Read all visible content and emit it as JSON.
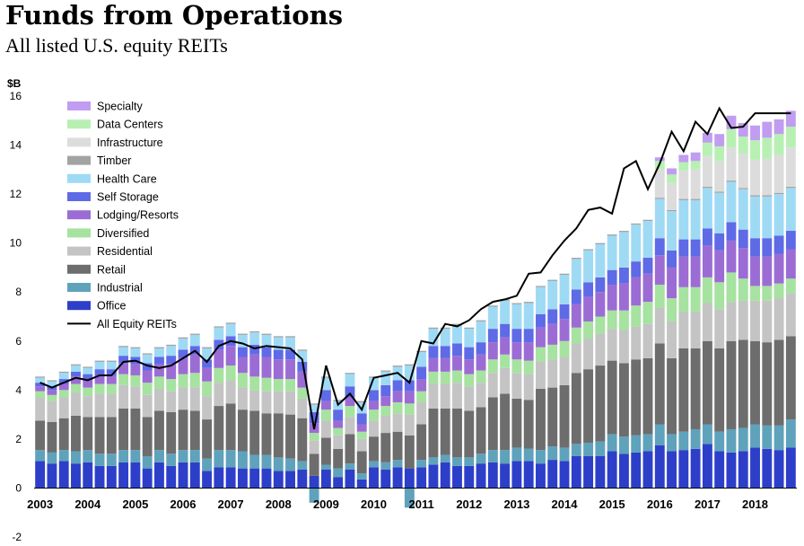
{
  "title": "Funds from Operations",
  "subtitle": "All listed U.S. equity REITs",
  "chart_data": {
    "type": "bar",
    "stacked": true,
    "title": "Funds from Operations",
    "subtitle": "All listed U.S. equity REITs",
    "ylabel": "$B",
    "xlabel": "",
    "ylim": [
      -2,
      16
    ],
    "yticks": [
      -2,
      0,
      2,
      4,
      6,
      8,
      10,
      12,
      14,
      16
    ],
    "x_tick_labels": [
      "2003",
      "2004",
      "2005",
      "2006",
      "2007",
      "2008",
      "2009",
      "2010",
      "2011",
      "2012",
      "2013",
      "2014",
      "2015",
      "2016",
      "2017",
      "2018"
    ],
    "x_start": "2003Q1",
    "periods_per_year": 4,
    "grid": false,
    "legend_position": "top-left",
    "series": [
      {
        "name": "Office",
        "color": "#2d3fc9",
        "values": [
          1.1,
          1.0,
          1.1,
          1.0,
          1.05,
          0.9,
          0.9,
          1.05,
          1.05,
          0.8,
          1.05,
          0.9,
          1.05,
          1.05,
          0.7,
          0.85,
          0.85,
          0.8,
          0.8,
          0.8,
          0.7,
          0.7,
          0.75,
          0.5,
          0.75,
          0.45,
          0.75,
          0.35,
          0.85,
          0.75,
          0.85,
          0.8,
          0.85,
          0.95,
          1.05,
          0.9,
          0.9,
          1.0,
          1.05,
          1.0,
          1.1,
          1.1,
          1.0,
          1.15,
          1.1,
          1.3,
          1.3,
          1.3,
          1.5,
          1.4,
          1.45,
          1.5,
          1.75,
          1.5,
          1.55,
          1.6,
          1.8,
          1.5,
          1.45,
          1.5,
          1.65,
          1.6,
          1.55,
          1.65
        ]
      },
      {
        "name": "Industrial",
        "color": "#5fa2bc",
        "values": [
          0.45,
          0.45,
          0.45,
          0.5,
          0.5,
          0.5,
          0.5,
          0.5,
          0.5,
          0.5,
          0.5,
          0.5,
          0.5,
          0.5,
          0.5,
          0.7,
          0.7,
          0.7,
          0.55,
          0.55,
          0.55,
          0.5,
          0.35,
          -0.6,
          0.2,
          0.35,
          0.25,
          0.25,
          0.25,
          0.3,
          0.3,
          -0.8,
          0.3,
          0.3,
          0.3,
          0.35,
          0.35,
          0.4,
          0.5,
          0.55,
          0.55,
          0.5,
          0.55,
          0.55,
          0.55,
          0.5,
          0.55,
          0.6,
          0.7,
          0.7,
          0.7,
          0.7,
          0.85,
          0.7,
          0.75,
          0.8,
          0.8,
          0.8,
          0.95,
          0.95,
          0.95,
          0.95,
          1.0,
          1.15
        ]
      },
      {
        "name": "Retail",
        "color": "#6d6d6d",
        "values": [
          1.2,
          1.25,
          1.3,
          1.45,
          1.35,
          1.5,
          1.5,
          1.7,
          1.7,
          1.6,
          1.6,
          1.7,
          1.65,
          1.6,
          1.6,
          1.8,
          1.9,
          1.7,
          1.8,
          1.7,
          1.8,
          1.8,
          1.75,
          0.9,
          1.1,
          0.8,
          1.2,
          0.9,
          1.0,
          1.2,
          1.15,
          1.35,
          1.45,
          2.0,
          1.9,
          2.0,
          1.9,
          1.9,
          2.15,
          2.3,
          2.0,
          2.0,
          2.5,
          2.4,
          2.55,
          2.9,
          3.0,
          3.1,
          3.0,
          3.0,
          3.1,
          3.1,
          3.3,
          3.1,
          3.4,
          3.3,
          3.4,
          3.4,
          3.6,
          3.6,
          3.4,
          3.4,
          3.5,
          3.4
        ]
      },
      {
        "name": "Residential",
        "color": "#c4c4c4",
        "values": [
          0.95,
          0.85,
          0.85,
          0.95,
          0.85,
          0.95,
          0.95,
          0.95,
          0.9,
          0.9,
          0.9,
          0.85,
          0.9,
          0.95,
          0.95,
          0.95,
          0.95,
          0.9,
          0.85,
          0.9,
          0.9,
          0.95,
          0.8,
          0.55,
          0.7,
          0.55,
          0.7,
          0.5,
          0.65,
          0.7,
          0.75,
          0.85,
          0.9,
          1.0,
          1.0,
          1.05,
          1.0,
          1.0,
          1.0,
          1.05,
          1.05,
          1.05,
          1.1,
          1.15,
          1.15,
          1.2,
          1.25,
          1.3,
          1.3,
          1.35,
          1.35,
          1.4,
          1.45,
          1.5,
          1.5,
          1.5,
          1.55,
          1.6,
          1.6,
          1.6,
          1.65,
          1.7,
          1.7,
          1.75
        ]
      },
      {
        "name": "Diversified",
        "color": "#a6e2a0",
        "values": [
          0.25,
          0.25,
          0.3,
          0.35,
          0.35,
          0.4,
          0.4,
          0.45,
          0.45,
          0.5,
          0.5,
          0.5,
          0.55,
          0.6,
          0.6,
          0.6,
          0.6,
          0.6,
          0.55,
          0.55,
          0.5,
          0.5,
          0.45,
          0.3,
          0.45,
          0.3,
          0.45,
          0.3,
          0.45,
          0.4,
          0.45,
          0.45,
          0.45,
          0.5,
          0.5,
          0.5,
          0.5,
          0.5,
          0.55,
          0.55,
          0.55,
          0.55,
          0.6,
          0.6,
          0.65,
          0.65,
          0.7,
          0.7,
          0.75,
          0.8,
          0.85,
          0.9,
          0.95,
          0.95,
          1.0,
          1.0,
          1.05,
          1.1,
          1.2,
          0.9,
          0.6,
          0.6,
          0.6,
          0.6
        ]
      },
      {
        "name": "Lodging/Resorts",
        "color": "#9c6cd5",
        "values": [
          0.2,
          0.2,
          0.25,
          0.3,
          0.3,
          0.35,
          0.35,
          0.45,
          0.45,
          0.5,
          0.5,
          0.6,
          0.65,
          0.75,
          0.55,
          0.75,
          0.8,
          0.65,
          0.9,
          0.85,
          0.8,
          0.8,
          0.65,
          0.4,
          0.35,
          0.3,
          0.35,
          0.3,
          0.35,
          0.4,
          0.45,
          0.5,
          0.5,
          0.55,
          0.55,
          0.6,
          0.6,
          0.65,
          0.7,
          0.7,
          0.7,
          0.75,
          0.8,
          0.85,
          0.9,
          0.95,
          1.0,
          1.0,
          1.05,
          1.1,
          1.15,
          1.15,
          1.2,
          1.25,
          1.25,
          1.25,
          1.3,
          1.3,
          1.3,
          1.25,
          1.2,
          1.2,
          1.2,
          1.2
        ]
      },
      {
        "name": "Self Storage",
        "color": "#5f6ae6",
        "values": [
          0.15,
          0.15,
          0.2,
          0.2,
          0.25,
          0.25,
          0.25,
          0.3,
          0.3,
          0.3,
          0.3,
          0.35,
          0.35,
          0.35,
          0.35,
          0.4,
          0.4,
          0.4,
          0.4,
          0.4,
          0.4,
          0.4,
          0.4,
          0.45,
          0.45,
          0.45,
          0.45,
          0.45,
          0.45,
          0.45,
          0.45,
          0.45,
          0.5,
          0.5,
          0.5,
          0.5,
          0.5,
          0.5,
          0.55,
          0.55,
          0.55,
          0.55,
          0.55,
          0.6,
          0.6,
          0.6,
          0.6,
          0.6,
          0.6,
          0.65,
          0.65,
          0.65,
          0.7,
          0.7,
          0.7,
          0.7,
          0.7,
          0.7,
          0.75,
          0.75,
          0.75,
          0.75,
          0.75,
          0.75
        ]
      },
      {
        "name": "Health Care",
        "color": "#9fdaf5",
        "values": [
          0.2,
          0.2,
          0.25,
          0.25,
          0.25,
          0.3,
          0.3,
          0.35,
          0.35,
          0.35,
          0.35,
          0.4,
          0.45,
          0.45,
          0.45,
          0.5,
          0.5,
          0.5,
          0.5,
          0.5,
          0.5,
          0.5,
          0.45,
          0.3,
          0.5,
          0.35,
          0.5,
          0.45,
          0.5,
          0.55,
          0.55,
          0.6,
          0.6,
          0.7,
          0.7,
          0.75,
          0.75,
          0.85,
          0.9,
          0.95,
          1.0,
          1.05,
          1.1,
          1.15,
          1.2,
          1.25,
          1.3,
          1.35,
          1.4,
          1.45,
          1.5,
          1.5,
          1.6,
          1.6,
          1.6,
          1.6,
          1.65,
          1.65,
          1.65,
          1.65,
          1.7,
          1.7,
          1.7,
          1.75
        ]
      },
      {
        "name": "Timber",
        "color": "#a3a3a3",
        "values": [
          0.05,
          0.05,
          0.05,
          0.05,
          0.05,
          0.05,
          0.05,
          0.05,
          0.05,
          0.05,
          0.05,
          0.05,
          0.05,
          0.05,
          0.05,
          0.05,
          0.05,
          0.05,
          0.05,
          0.05,
          0.05,
          0.05,
          0.05,
          0.05,
          0.05,
          0.05,
          0.05,
          0.05,
          0.05,
          0.05,
          0.05,
          0.05,
          0.05,
          0.05,
          0.05,
          0.05,
          0.05,
          0.05,
          0.05,
          0.05,
          0.05,
          0.05,
          0.05,
          0.05,
          0.05,
          0.05,
          0.05,
          0.05,
          0.05,
          0.05,
          0.05,
          0.05,
          0.05,
          0.05,
          0.05,
          0.05,
          0.05,
          0.05,
          0.05,
          0.05,
          0.05,
          0.05,
          0.05,
          0.05
        ]
      },
      {
        "name": "Infrastructure",
        "color": "#dcdcdc",
        "values": [
          0,
          0,
          0,
          0,
          0,
          0,
          0,
          0,
          0,
          0,
          0,
          0,
          0,
          0,
          0,
          0,
          0,
          0,
          0,
          0,
          0,
          0,
          0,
          0,
          0,
          0,
          0,
          0,
          0,
          0,
          0,
          0,
          0,
          0,
          0,
          0,
          0,
          0,
          0,
          0,
          0,
          0,
          0,
          0,
          0,
          0,
          0,
          0,
          0,
          0,
          0,
          0,
          1.15,
          1.1,
          1.15,
          1.2,
          1.25,
          1.25,
          1.35,
          1.4,
          1.45,
          1.5,
          1.55,
          1.6
        ]
      },
      {
        "name": "Data Centers",
        "color": "#b8f0b4",
        "values": [
          0,
          0,
          0,
          0,
          0,
          0,
          0,
          0,
          0,
          0,
          0,
          0,
          0,
          0,
          0,
          0,
          0,
          0,
          0,
          0,
          0,
          0,
          0,
          0,
          0,
          0,
          0,
          0,
          0,
          0,
          0,
          0,
          0,
          0,
          0,
          0,
          0,
          0,
          0,
          0,
          0,
          0,
          0,
          0,
          0,
          0,
          0,
          0,
          0,
          0,
          0,
          0,
          0.35,
          0.35,
          0.35,
          0.35,
          0.55,
          0.6,
          0.75,
          0.7,
          0.8,
          0.85,
          0.85,
          0.85
        ]
      },
      {
        "name": "Specialty",
        "color": "#c09df0",
        "values": [
          0,
          0,
          0,
          0,
          0,
          0,
          0,
          0,
          0,
          0,
          0,
          0,
          0,
          0,
          0,
          0,
          0,
          0,
          0,
          0,
          0,
          0,
          0,
          0,
          0,
          0,
          0,
          0,
          0,
          0,
          0,
          0,
          0,
          0,
          0,
          0,
          0,
          0,
          0,
          0,
          0,
          0,
          0,
          0,
          0,
          0,
          0,
          0,
          0,
          0,
          0,
          0,
          0.15,
          0.25,
          0.3,
          0.35,
          0.4,
          0.5,
          0.55,
          0.55,
          0.6,
          0.65,
          0.6,
          0.65
        ]
      }
    ],
    "line_series": {
      "name": "All Equity REITs",
      "color": "#000000",
      "values": [
        4.3,
        4.1,
        4.3,
        4.5,
        4.4,
        4.6,
        4.6,
        5.15,
        5.2,
        5.0,
        4.9,
        5.0,
        5.3,
        5.6,
        5.15,
        5.8,
        6.0,
        5.9,
        5.7,
        5.8,
        5.75,
        5.7,
        5.25,
        2.4,
        5.0,
        3.4,
        3.85,
        3.2,
        4.5,
        4.6,
        4.7,
        4.3,
        6.0,
        5.9,
        6.7,
        6.6,
        6.85,
        7.3,
        7.6,
        7.7,
        7.85,
        8.75,
        8.8,
        9.5,
        10.1,
        10.6,
        11.35,
        11.45,
        11.2,
        13.05,
        13.35,
        12.2,
        13.25,
        14.55,
        13.75,
        14.95,
        14.45,
        15.5,
        14.7,
        14.75,
        15.3,
        15.3,
        15.3,
        15.3
      ]
    }
  }
}
